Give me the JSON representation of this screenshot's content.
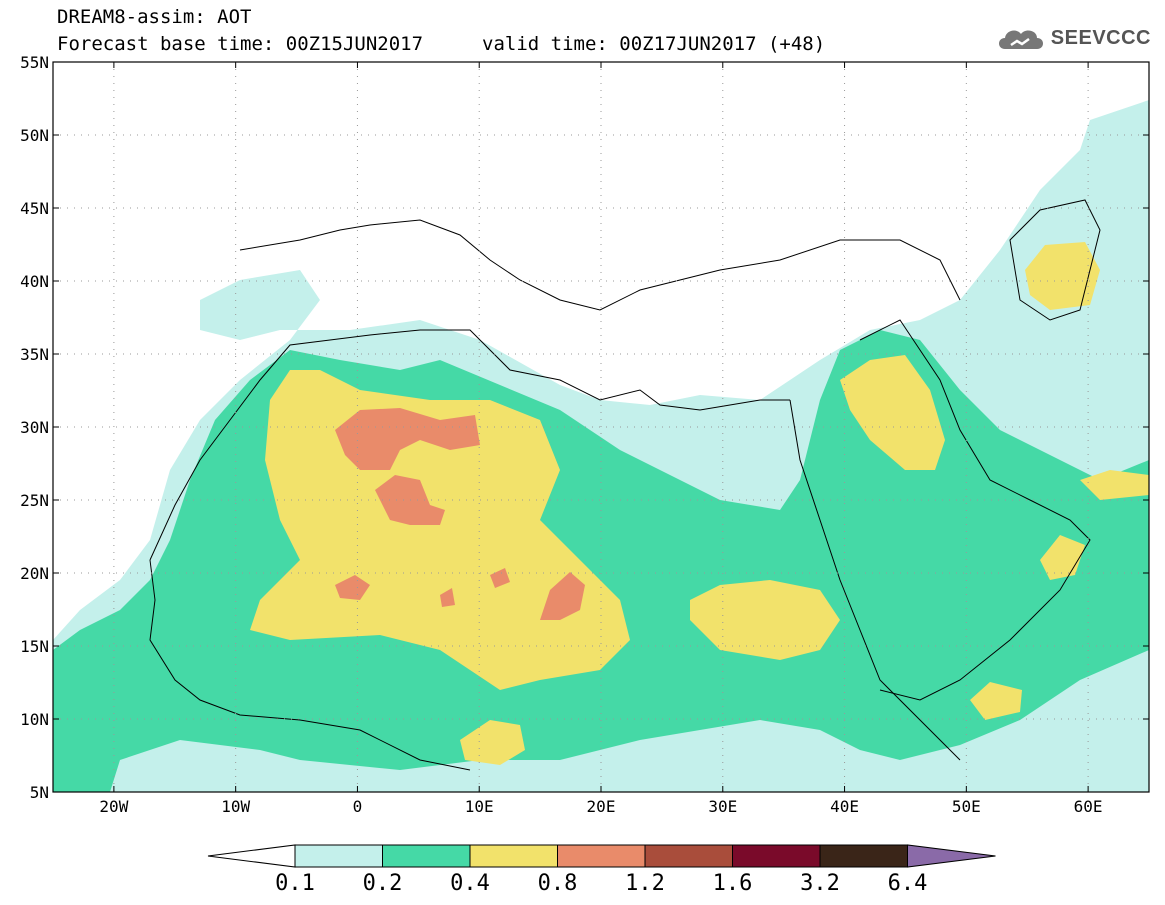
{
  "header": {
    "line1": "DREAM8-assim: AOT",
    "line2": "Forecast base time: 00Z15JUN2017",
    "valid": "valid time: 00Z17JUN2017 (+48)"
  },
  "logo": {
    "text": "SEEVCCC",
    "icon": "cloud-icon"
  },
  "axes": {
    "lat_labels": [
      "55N",
      "50N",
      "45N",
      "40N",
      "35N",
      "30N",
      "25N",
      "20N",
      "15N",
      "10N",
      "5N"
    ],
    "lon_labels": [
      "20W",
      "10W",
      "0",
      "10E",
      "20E",
      "30E",
      "40E",
      "50E",
      "60E"
    ]
  },
  "legend": {
    "labels": [
      "0.1",
      "0.2",
      "0.4",
      "0.8",
      "1.2",
      "1.6",
      "3.2",
      "6.4"
    ],
    "colors": [
      "#ffffff",
      "#c4f0eb",
      "#45d9a6",
      "#f2e26b",
      "#e98b6a",
      "#a94d3b",
      "#7a0a2a",
      "#3a2518",
      "#8a6aa8"
    ]
  },
  "map": {
    "variable": "Aerosol Optical Thickness",
    "region": "North Africa, Middle East, Europe",
    "lon_range": [
      -25,
      65
    ],
    "lat_range": [
      5,
      55
    ]
  }
}
